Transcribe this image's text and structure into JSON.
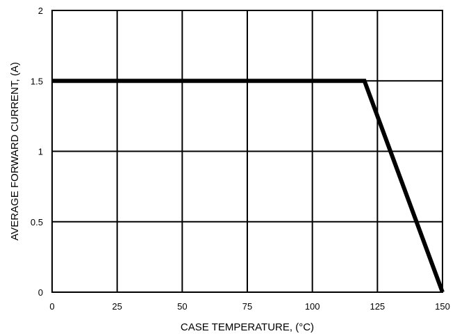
{
  "chart_data": {
    "type": "line",
    "title": "",
    "xlabel": "CASE TEMPERATURE, (°C)",
    "ylabel": "AVERAGE FORWARD CURRENT, (A)",
    "xlim": [
      0,
      150
    ],
    "ylim": [
      0,
      2
    ],
    "xticks": [
      0,
      25,
      50,
      75,
      100,
      125,
      150
    ],
    "xtick_labels": [
      "0",
      "25",
      "50",
      "75",
      "100",
      "125",
      "150"
    ],
    "yticks": [
      0,
      0.5,
      1,
      1.5,
      2
    ],
    "ytick_labels": [
      "0",
      "0.5",
      "1",
      "1.5",
      "2"
    ],
    "grid": true,
    "legend": "none",
    "series": [
      {
        "x": [
          0,
          120,
          150
        ],
        "y": [
          1.5,
          1.5,
          0
        ],
        "color": "#000000"
      }
    ]
  }
}
